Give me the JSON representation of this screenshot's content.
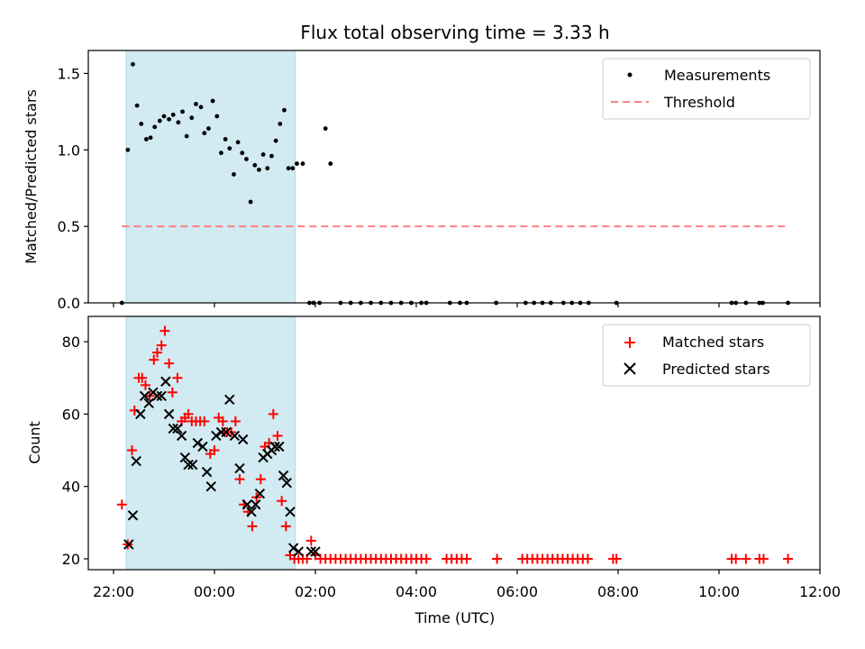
{
  "chart_data": [
    {
      "type": "scatter",
      "title": "Flux total observing time = 3.33 h",
      "xlabel": "",
      "ylabel": "Matched/Predicted stars",
      "xlim": [
        "2023-01-01T21:30",
        "2023-01-02T12:00"
      ],
      "ylim": [
        0,
        1.65
      ],
      "yticks": [
        0.0,
        0.5,
        1.0,
        1.5
      ],
      "ytick_labels": [
        "0.0",
        "0.5",
        "1.0",
        "1.5"
      ],
      "shaded_span": [
        "2023-01-01T22:15",
        "2023-01-02T01:36"
      ],
      "shaded_color": "#add8e6",
      "legend_position": "top-right",
      "threshold": {
        "name": "Threshold",
        "value": 0.5,
        "x_range": [
          "2023-01-01T22:10",
          "2023-01-02T11:20"
        ],
        "color": "#ff7f7f",
        "style": "dashed"
      },
      "series": [
        {
          "name": "Measurements",
          "color": "#000000",
          "marker": "dot",
          "points": [
            [
              "2023-01-01T22:10",
              0.0
            ],
            [
              "2023-01-01T22:17",
              1.0
            ],
            [
              "2023-01-01T22:23",
              1.56
            ],
            [
              "2023-01-01T22:28",
              1.29
            ],
            [
              "2023-01-01T22:33",
              1.17
            ],
            [
              "2023-01-01T22:39",
              1.07
            ],
            [
              "2023-01-01T22:44",
              1.08
            ],
            [
              "2023-01-01T22:49",
              1.15
            ],
            [
              "2023-01-01T22:55",
              1.19
            ],
            [
              "2023-01-01T23:00",
              1.22
            ],
            [
              "2023-01-01T23:06",
              1.2
            ],
            [
              "2023-01-01T23:11",
              1.23
            ],
            [
              "2023-01-01T23:17",
              1.18
            ],
            [
              "2023-01-01T23:22",
              1.25
            ],
            [
              "2023-01-01T23:27",
              1.09
            ],
            [
              "2023-01-01T23:33",
              1.21
            ],
            [
              "2023-01-01T23:38",
              1.3
            ],
            [
              "2023-01-01T23:44",
              1.28
            ],
            [
              "2023-01-01T23:48",
              1.11
            ],
            [
              "2023-01-01T23:53",
              1.14
            ],
            [
              "2023-01-01T23:58",
              1.32
            ],
            [
              "2023-01-02T00:03",
              1.22
            ],
            [
              "2023-01-02T00:08",
              0.98
            ],
            [
              "2023-01-02T00:13",
              1.07
            ],
            [
              "2023-01-02T00:18",
              1.01
            ],
            [
              "2023-01-02T00:23",
              0.84
            ],
            [
              "2023-01-02T00:28",
              1.05
            ],
            [
              "2023-01-02T00:33",
              0.98
            ],
            [
              "2023-01-02T00:38",
              0.94
            ],
            [
              "2023-01-02T00:43",
              0.66
            ],
            [
              "2023-01-02T00:48",
              0.9
            ],
            [
              "2023-01-02T00:53",
              0.87
            ],
            [
              "2023-01-02T00:58",
              0.97
            ],
            [
              "2023-01-02T01:03",
              0.88
            ],
            [
              "2023-01-02T01:08",
              0.96
            ],
            [
              "2023-01-02T01:13",
              1.06
            ],
            [
              "2023-01-02T01:18",
              1.17
            ],
            [
              "2023-01-02T01:23",
              1.26
            ],
            [
              "2023-01-02T01:28",
              0.88
            ],
            [
              "2023-01-02T01:33",
              0.88
            ],
            [
              "2023-01-02T01:38",
              0.91
            ],
            [
              "2023-01-02T01:45",
              0.91
            ],
            [
              "2023-01-02T01:53",
              0.0
            ],
            [
              "2023-01-02T01:58",
              0.0
            ],
            [
              "2023-01-02T02:05",
              0.0
            ],
            [
              "2023-01-02T02:12",
              1.14
            ],
            [
              "2023-01-02T02:18",
              0.91
            ],
            [
              "2023-01-02T02:30",
              0.0
            ],
            [
              "2023-01-02T02:42",
              0.0
            ],
            [
              "2023-01-02T02:54",
              0.0
            ],
            [
              "2023-01-02T03:06",
              0.0
            ],
            [
              "2023-01-02T03:18",
              0.0
            ],
            [
              "2023-01-02T03:30",
              0.0
            ],
            [
              "2023-01-02T03:42",
              0.0
            ],
            [
              "2023-01-02T03:54",
              0.0
            ],
            [
              "2023-01-02T04:06",
              0.0
            ],
            [
              "2023-01-02T04:12",
              0.0
            ],
            [
              "2023-01-02T04:40",
              0.0
            ],
            [
              "2023-01-02T04:52",
              0.0
            ],
            [
              "2023-01-02T05:00",
              0.0
            ],
            [
              "2023-01-02T05:35",
              0.0
            ],
            [
              "2023-01-02T06:10",
              0.0
            ],
            [
              "2023-01-02T06:20",
              0.0
            ],
            [
              "2023-01-02T06:30",
              0.0
            ],
            [
              "2023-01-02T06:40",
              0.0
            ],
            [
              "2023-01-02T06:55",
              0.0
            ],
            [
              "2023-01-02T07:05",
              0.0
            ],
            [
              "2023-01-02T07:15",
              0.0
            ],
            [
              "2023-01-02T07:25",
              0.0
            ],
            [
              "2023-01-02T07:58",
              0.0
            ],
            [
              "2023-01-02T10:15",
              0.0
            ],
            [
              "2023-01-02T10:20",
              0.0
            ],
            [
              "2023-01-02T10:32",
              0.0
            ],
            [
              "2023-01-02T10:48",
              0.0
            ],
            [
              "2023-01-02T10:52",
              0.0
            ],
            [
              "2023-01-02T11:22",
              0.0
            ]
          ]
        }
      ]
    },
    {
      "type": "scatter",
      "title": "",
      "xlabel": "Time (UTC)",
      "ylabel": "Count",
      "xlim": [
        "2023-01-01T21:30",
        "2023-01-02T12:00"
      ],
      "xticks": [
        "2023-01-01T22:00",
        "2023-01-02T00:00",
        "2023-01-02T02:00",
        "2023-01-02T04:00",
        "2023-01-02T06:00",
        "2023-01-02T08:00",
        "2023-01-02T10:00",
        "2023-01-02T12:00"
      ],
      "xtick_labels": [
        "22:00",
        "00:00",
        "02:00",
        "04:00",
        "06:00",
        "08:00",
        "10:00",
        "12:00"
      ],
      "ylim": [
        17,
        87
      ],
      "yticks": [
        20,
        40,
        60,
        80
      ],
      "ytick_labels": [
        "20",
        "40",
        "60",
        "80"
      ],
      "shaded_span": [
        "2023-01-01T22:15",
        "2023-01-02T01:36"
      ],
      "shaded_color": "#add8e6",
      "legend_position": "top-right",
      "series": [
        {
          "name": "Matched stars",
          "color": "#ff0000",
          "marker": "plus",
          "points": [
            [
              "2023-01-01T22:10",
              35
            ],
            [
              "2023-01-01T22:17",
              24
            ],
            [
              "2023-01-01T22:22",
              50
            ],
            [
              "2023-01-01T22:25",
              61
            ],
            [
              "2023-01-01T22:30",
              70
            ],
            [
              "2023-01-01T22:34",
              70
            ],
            [
              "2023-01-01T22:38",
              68
            ],
            [
              "2023-01-01T22:43",
              65
            ],
            [
              "2023-01-01T22:48",
              75
            ],
            [
              "2023-01-01T22:52",
              77
            ],
            [
              "2023-01-01T22:57",
              79
            ],
            [
              "2023-01-01T23:01",
              83
            ],
            [
              "2023-01-01T23:06",
              74
            ],
            [
              "2023-01-01T23:10",
              66
            ],
            [
              "2023-01-01T23:16",
              70
            ],
            [
              "2023-01-01T23:21",
              58
            ],
            [
              "2023-01-01T23:25",
              59
            ],
            [
              "2023-01-01T23:29",
              60
            ],
            [
              "2023-01-01T23:33",
              58
            ],
            [
              "2023-01-01T23:38",
              58
            ],
            [
              "2023-01-01T23:43",
              58
            ],
            [
              "2023-01-01T23:48",
              58
            ],
            [
              "2023-01-01T23:55",
              49
            ],
            [
              "2023-01-02T00:00",
              50
            ],
            [
              "2023-01-02T00:05",
              59
            ],
            [
              "2023-01-02T00:10",
              58
            ],
            [
              "2023-01-02T00:15",
              55
            ],
            [
              "2023-01-02T00:20",
              55
            ],
            [
              "2023-01-02T00:25",
              58
            ],
            [
              "2023-01-02T00:30",
              42
            ],
            [
              "2023-01-02T00:35",
              35
            ],
            [
              "2023-01-02T00:40",
              33
            ],
            [
              "2023-01-02T00:45",
              29
            ],
            [
              "2023-01-02T00:50",
              37
            ],
            [
              "2023-01-02T00:55",
              42
            ],
            [
              "2023-01-02T01:00",
              51
            ],
            [
              "2023-01-02T01:05",
              52
            ],
            [
              "2023-01-02T01:10",
              60
            ],
            [
              "2023-01-02T01:15",
              54
            ],
            [
              "2023-01-02T01:20",
              36
            ],
            [
              "2023-01-02T01:25",
              29
            ],
            [
              "2023-01-02T01:30",
              21
            ],
            [
              "2023-01-02T01:35",
              20
            ],
            [
              "2023-01-02T01:40",
              20
            ],
            [
              "2023-01-02T01:45",
              20
            ],
            [
              "2023-01-02T01:50",
              20
            ],
            [
              "2023-01-02T01:55",
              25
            ],
            [
              "2023-01-02T02:00",
              21
            ],
            [
              "2023-01-02T02:06",
              20
            ],
            [
              "2023-01-02T02:12",
              20
            ],
            [
              "2023-01-02T02:18",
              20
            ],
            [
              "2023-01-02T02:24",
              20
            ],
            [
              "2023-01-02T02:30",
              20
            ],
            [
              "2023-01-02T02:36",
              20
            ],
            [
              "2023-01-02T02:42",
              20
            ],
            [
              "2023-01-02T02:48",
              20
            ],
            [
              "2023-01-02T02:54",
              20
            ],
            [
              "2023-01-02T03:00",
              20
            ],
            [
              "2023-01-02T03:06",
              20
            ],
            [
              "2023-01-02T03:12",
              20
            ],
            [
              "2023-01-02T03:18",
              20
            ],
            [
              "2023-01-02T03:24",
              20
            ],
            [
              "2023-01-02T03:30",
              20
            ],
            [
              "2023-01-02T03:36",
              20
            ],
            [
              "2023-01-02T03:42",
              20
            ],
            [
              "2023-01-02T03:48",
              20
            ],
            [
              "2023-01-02T03:54",
              20
            ],
            [
              "2023-01-02T04:00",
              20
            ],
            [
              "2023-01-02T04:06",
              20
            ],
            [
              "2023-01-02T04:12",
              20
            ],
            [
              "2023-01-02T04:36",
              20
            ],
            [
              "2023-01-02T04:42",
              20
            ],
            [
              "2023-01-02T04:48",
              20
            ],
            [
              "2023-01-02T04:54",
              20
            ],
            [
              "2023-01-02T05:00",
              20
            ],
            [
              "2023-01-02T05:36",
              20
            ],
            [
              "2023-01-02T06:06",
              20
            ],
            [
              "2023-01-02T06:12",
              20
            ],
            [
              "2023-01-02T06:18",
              20
            ],
            [
              "2023-01-02T06:24",
              20
            ],
            [
              "2023-01-02T06:30",
              20
            ],
            [
              "2023-01-02T06:36",
              20
            ],
            [
              "2023-01-02T06:42",
              20
            ],
            [
              "2023-01-02T06:48",
              20
            ],
            [
              "2023-01-02T06:54",
              20
            ],
            [
              "2023-01-02T07:00",
              20
            ],
            [
              "2023-01-02T07:06",
              20
            ],
            [
              "2023-01-02T07:12",
              20
            ],
            [
              "2023-01-02T07:18",
              20
            ],
            [
              "2023-01-02T07:24",
              20
            ],
            [
              "2023-01-02T07:54",
              20
            ],
            [
              "2023-01-02T07:58",
              20
            ],
            [
              "2023-01-02T10:15",
              20
            ],
            [
              "2023-01-02T10:20",
              20
            ],
            [
              "2023-01-02T10:32",
              20
            ],
            [
              "2023-01-02T10:48",
              20
            ],
            [
              "2023-01-02T10:53",
              20
            ],
            [
              "2023-01-02T11:22",
              20
            ]
          ]
        },
        {
          "name": "Predicted stars",
          "color": "#000000",
          "marker": "x",
          "points": [
            [
              "2023-01-01T22:18",
              24
            ],
            [
              "2023-01-01T22:23",
              32
            ],
            [
              "2023-01-01T22:27",
              47
            ],
            [
              "2023-01-01T22:32",
              60
            ],
            [
              "2023-01-01T22:37",
              65
            ],
            [
              "2023-01-01T22:42",
              63
            ],
            [
              "2023-01-01T22:47",
              66
            ],
            [
              "2023-01-01T22:52",
              65
            ],
            [
              "2023-01-01T22:57",
              65
            ],
            [
              "2023-01-01T23:02",
              69
            ],
            [
              "2023-01-01T23:06",
              60
            ],
            [
              "2023-01-01T23:11",
              56
            ],
            [
              "2023-01-01T23:16",
              56
            ],
            [
              "2023-01-01T23:21",
              54
            ],
            [
              "2023-01-01T23:25",
              48
            ],
            [
              "2023-01-01T23:29",
              46
            ],
            [
              "2023-01-01T23:34",
              46
            ],
            [
              "2023-01-01T23:40",
              52
            ],
            [
              "2023-01-01T23:46",
              51
            ],
            [
              "2023-01-01T23:51",
              44
            ],
            [
              "2023-01-01T23:56",
              40
            ],
            [
              "2023-01-02T00:02",
              54
            ],
            [
              "2023-01-02T00:08",
              55
            ],
            [
              "2023-01-02T00:14",
              55
            ],
            [
              "2023-01-02T00:18",
              64
            ],
            [
              "2023-01-02T00:24",
              54
            ],
            [
              "2023-01-02T00:30",
              45
            ],
            [
              "2023-01-02T00:34",
              53
            ],
            [
              "2023-01-02T00:39",
              35
            ],
            [
              "2023-01-02T00:44",
              33
            ],
            [
              "2023-01-02T00:49",
              35
            ],
            [
              "2023-01-02T00:54",
              38
            ],
            [
              "2023-01-02T00:58",
              48
            ],
            [
              "2023-01-02T01:03",
              49
            ],
            [
              "2023-01-02T01:08",
              50
            ],
            [
              "2023-01-02T01:12",
              51
            ],
            [
              "2023-01-02T01:17",
              51
            ],
            [
              "2023-01-02T01:22",
              43
            ],
            [
              "2023-01-02T01:26",
              41
            ],
            [
              "2023-01-02T01:30",
              33
            ],
            [
              "2023-01-02T01:34",
              23
            ],
            [
              "2023-01-02T01:40",
              22
            ],
            [
              "2023-01-02T01:55",
              22
            ],
            [
              "2023-01-02T02:00",
              22
            ]
          ]
        }
      ]
    }
  ]
}
